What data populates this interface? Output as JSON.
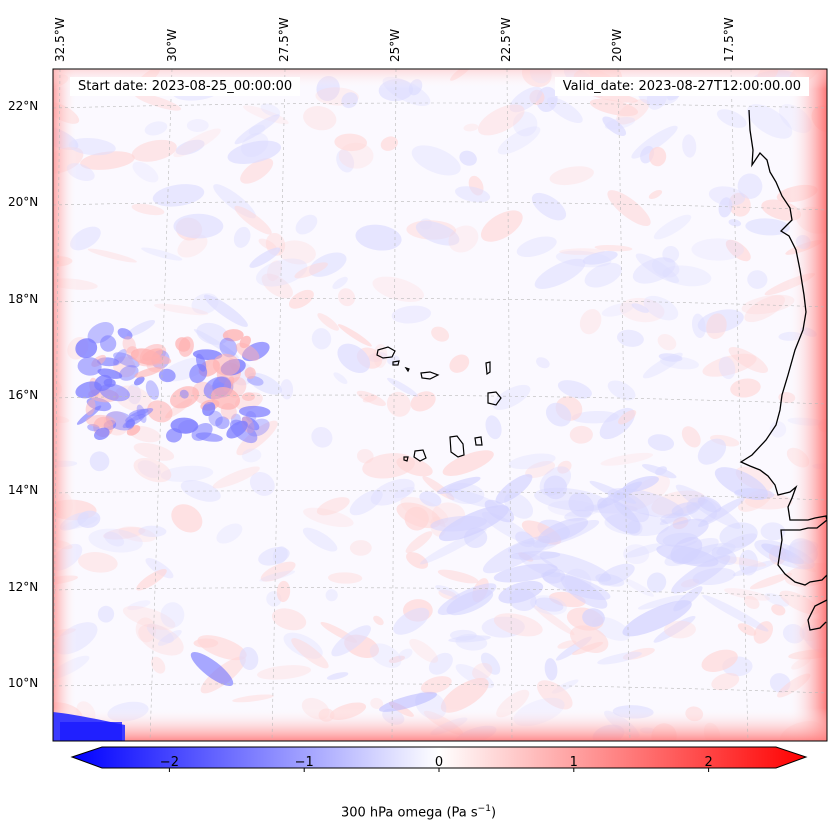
{
  "map": {
    "start_date": "Start date: 2023-08-25_00:00:00",
    "valid_date": "Valid_date: 2023-08-27T12:00:00.00",
    "longitude_labels": [
      "32.5°W",
      "30°W",
      "27.5°W",
      "25°W",
      "22.5°W",
      "20°W",
      "17.5°W"
    ],
    "latitude_labels": [
      "22°N",
      "20°N",
      "18°N",
      "16°N",
      "14°N",
      "12°N",
      "10°N"
    ],
    "field": "300 hPa omega",
    "colormap": "bwr",
    "colors": {
      "negative": "#0000ff",
      "zero": "#ffffff",
      "positive": "#ff0000",
      "coastline": "#000000"
    }
  },
  "colorbar": {
    "tick_labels": [
      "−2",
      "−1",
      "0",
      "1",
      "2"
    ],
    "tick_values": [
      -2,
      -1,
      0,
      1,
      2
    ],
    "range": [
      -2.6,
      2.6
    ],
    "extend": "both",
    "label_main": "300 hPa omega (Pa s",
    "label_exp": "−1",
    "label_end": ")"
  }
}
